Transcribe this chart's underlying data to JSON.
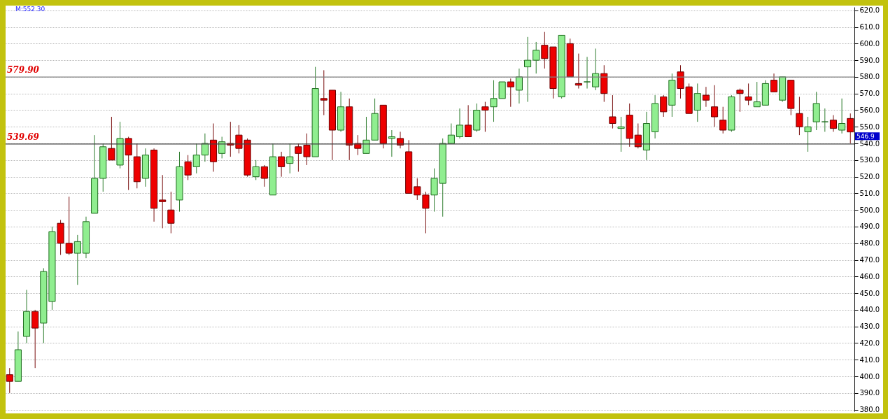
{
  "chart_data": {
    "type": "candlestick",
    "categories": [
      null,
      null,
      null,
      null,
      null,
      null,
      null,
      null,
      null,
      null,
      null,
      null,
      null,
      null,
      null,
      null,
      null,
      null,
      null,
      null,
      null,
      null,
      null,
      null,
      null,
      null,
      null,
      null,
      null,
      null,
      null,
      null,
      null,
      null,
      null,
      null,
      null,
      null,
      null,
      null,
      null,
      null,
      null,
      null,
      null,
      null,
      null,
      null,
      null,
      null,
      null,
      null,
      null,
      null,
      null,
      null,
      null,
      null,
      null,
      null,
      null,
      null,
      null,
      null,
      null,
      null,
      null,
      null,
      null,
      null,
      null,
      null,
      null,
      null,
      null,
      null,
      null,
      null,
      null,
      null,
      null,
      null,
      null,
      null,
      null,
      null,
      null,
      null,
      null,
      null,
      null,
      null,
      null,
      null,
      null,
      null,
      null,
      null,
      null,
      null
    ],
    "ohlc": [
      [
        401,
        405,
        390,
        397
      ],
      [
        397,
        427,
        397,
        416
      ],
      [
        424,
        452,
        420,
        439
      ],
      [
        439,
        440,
        405,
        429
      ],
      [
        432,
        465,
        420,
        463
      ],
      [
        445,
        490,
        440,
        487
      ],
      [
        492,
        494,
        473,
        480
      ],
      [
        480,
        508,
        473,
        474
      ],
      [
        474,
        485,
        455,
        481
      ],
      [
        474,
        496,
        471,
        493
      ],
      [
        498,
        545,
        498,
        519
      ],
      [
        519,
        540,
        511,
        538
      ],
      [
        537,
        556,
        530,
        530
      ],
      [
        527,
        553,
        525,
        543
      ],
      [
        543,
        544,
        512,
        533
      ],
      [
        532,
        540,
        513,
        517
      ],
      [
        519,
        537,
        514,
        533
      ],
      [
        536,
        537,
        493,
        501
      ],
      [
        506,
        521,
        489,
        505
      ],
      [
        500,
        511,
        486,
        492
      ],
      [
        506,
        535,
        499,
        526
      ],
      [
        529,
        533,
        518,
        521
      ],
      [
        526,
        540,
        522,
        533
      ],
      [
        533,
        546,
        529,
        540
      ],
      [
        542,
        552,
        523,
        529
      ],
      [
        534,
        544,
        531,
        541
      ],
      [
        540,
        553,
        532,
        539
      ],
      [
        545,
        551,
        534,
        537
      ],
      [
        542,
        543,
        520,
        521
      ],
      [
        520,
        530,
        518,
        526
      ],
      [
        526,
        527,
        514,
        519
      ],
      [
        509,
        540,
        509,
        532
      ],
      [
        532,
        535,
        520,
        526
      ],
      [
        528,
        540,
        522,
        532
      ],
      [
        538,
        540,
        523,
        534
      ],
      [
        539,
        546,
        527,
        532
      ],
      [
        532,
        586,
        532,
        573
      ],
      [
        567,
        584,
        557,
        566
      ],
      [
        572,
        572,
        530,
        548
      ],
      [
        548,
        571,
        547,
        562
      ],
      [
        562,
        567,
        530,
        539
      ],
      [
        540,
        545,
        533,
        537
      ],
      [
        534,
        556,
        534,
        542
      ],
      [
        542,
        567,
        542,
        558
      ],
      [
        563,
        563,
        537,
        540
      ],
      [
        543,
        548,
        532,
        544
      ],
      [
        543,
        547,
        537,
        539
      ],
      [
        535,
        542,
        510,
        510
      ],
      [
        514,
        519,
        506,
        509
      ],
      [
        509,
        511,
        486,
        501
      ],
      [
        509,
        525,
        499,
        519
      ],
      [
        516,
        543,
        496,
        540
      ],
      [
        540,
        552,
        540,
        545
      ],
      [
        544,
        561,
        543,
        551
      ],
      [
        551,
        563,
        544,
        544
      ],
      [
        548,
        564,
        547,
        560
      ],
      [
        562,
        565,
        547,
        560
      ],
      [
        562,
        578,
        553,
        567
      ],
      [
        567,
        577,
        567,
        577
      ],
      [
        577,
        579,
        562,
        574
      ],
      [
        572,
        585,
        564,
        580
      ],
      [
        586,
        604,
        565,
        590
      ],
      [
        590,
        601,
        582,
        596
      ],
      [
        599,
        607,
        585,
        591
      ],
      [
        598,
        598,
        567,
        573
      ],
      [
        568,
        605,
        567,
        605
      ],
      [
        600,
        603,
        580,
        580
      ],
      [
        576,
        594,
        573,
        575
      ],
      [
        577,
        592,
        573,
        577
      ],
      [
        574,
        597,
        572,
        582
      ],
      [
        582,
        587,
        565,
        570
      ],
      [
        556,
        569,
        549,
        552
      ],
      [
        549,
        556,
        535,
        550
      ],
      [
        557,
        564,
        538,
        543
      ],
      [
        545,
        552,
        537,
        538
      ],
      [
        536,
        559,
        530,
        552
      ],
      [
        547,
        569,
        543,
        564
      ],
      [
        568,
        569,
        556,
        559
      ],
      [
        563,
        582,
        556,
        578
      ],
      [
        583,
        587,
        567,
        573
      ],
      [
        574,
        576,
        558,
        558
      ],
      [
        560,
        576,
        553,
        570
      ],
      [
        569,
        574,
        562,
        566
      ],
      [
        562,
        575,
        550,
        556
      ],
      [
        554,
        562,
        546,
        548
      ],
      [
        548,
        569,
        547,
        568
      ],
      [
        572,
        573,
        559,
        570
      ],
      [
        568,
        576,
        563,
        566
      ],
      [
        562,
        577,
        562,
        565
      ],
      [
        563,
        578,
        563,
        576
      ],
      [
        578,
        582,
        571,
        571
      ],
      [
        566,
        580,
        565,
        580
      ],
      [
        578,
        578,
        557,
        561
      ],
      [
        558,
        568,
        545,
        550
      ],
      [
        547,
        556,
        535,
        550
      ],
      [
        553,
        571,
        548,
        564
      ],
      [
        553,
        561,
        547,
        553
      ],
      [
        554,
        557,
        547,
        549
      ],
      [
        548,
        567,
        546,
        552
      ],
      [
        555,
        558,
        540,
        546.9
      ]
    ],
    "ylim": [
      379,
      622
    ],
    "yticks": [
      {
        "value": 380,
        "label": "380.0"
      },
      {
        "value": 390,
        "label": "390.0"
      },
      {
        "value": 400,
        "label": "400.0"
      },
      {
        "value": 410,
        "label": "410.0"
      },
      {
        "value": 420,
        "label": "420.0"
      },
      {
        "value": 430,
        "label": "430.0"
      },
      {
        "value": 440,
        "label": "440.0"
      },
      {
        "value": 450,
        "label": "450.0"
      },
      {
        "value": 460,
        "label": "460.0"
      },
      {
        "value": 470,
        "label": "470.0"
      },
      {
        "value": 480,
        "label": "480.0"
      },
      {
        "value": 490,
        "label": "490.0"
      },
      {
        "value": 500,
        "label": "500.0"
      },
      {
        "value": 510,
        "label": "510.0"
      },
      {
        "value": 520,
        "label": "520.0"
      },
      {
        "value": 530,
        "label": "530.0"
      },
      {
        "value": 540,
        "label": "540.0"
      },
      {
        "value": 550,
        "label": "550.0"
      },
      {
        "value": 560,
        "label": "560.0"
      },
      {
        "value": 570,
        "label": "570.0"
      },
      {
        "value": 580,
        "label": "580.0"
      },
      {
        "value": 590,
        "label": "590.0"
      },
      {
        "value": 600,
        "label": "600.0"
      },
      {
        "value": 610,
        "label": "610.0"
      },
      {
        "value": 620,
        "label": "620.0"
      }
    ],
    "grid": "y",
    "ref_lines": [
      {
        "axis": "y",
        "value": 579.9,
        "label": "579.90",
        "color": "#808080"
      },
      {
        "axis": "y",
        "value": 539.69,
        "label": "539.69",
        "color": "#404040"
      }
    ],
    "annotations": [
      "M:552.30",
      "546.9"
    ]
  }
}
